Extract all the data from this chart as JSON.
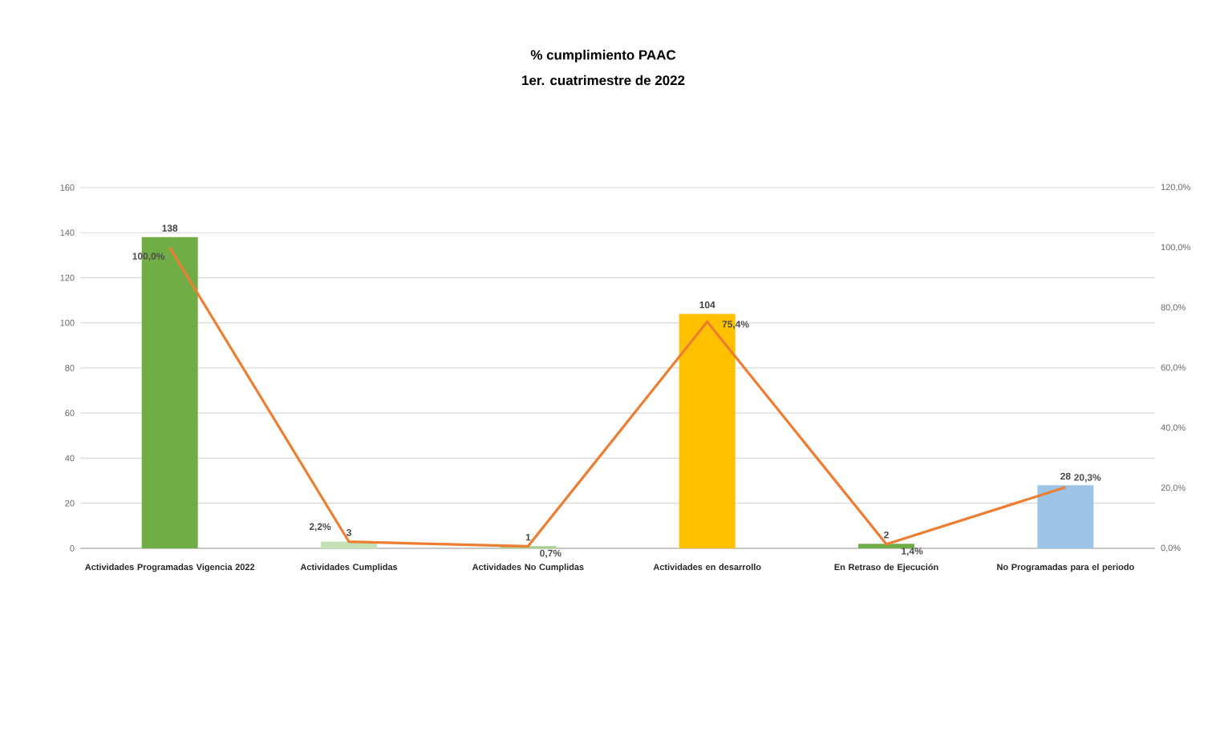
{
  "chart_data": {
    "type": "bar",
    "title": "% cumplimiento PAAC",
    "subtitle": "1er. cuatrimestre de 2022",
    "categories": [
      "Actividades Programadas Vigencia 2022",
      "Actividades Cumplidas",
      "Actividades No Cumplidas",
      "Actividades en desarrollo",
      "En Retraso de Ejecución",
      "No Programadas para el periodo"
    ],
    "series": [
      {
        "type": "bar",
        "colors": [
          "#70ad47",
          "#c5e0b4",
          "#a9d18e",
          "#ffc000",
          "#70ad47",
          "#9dc3e6"
        ],
        "values": [
          138,
          3,
          1,
          104,
          2,
          28
        ],
        "value_labels": [
          "138",
          "3",
          "1",
          "104",
          "2",
          "28"
        ]
      },
      {
        "type": "line",
        "axis": "y2",
        "color": "#ed7d31",
        "values": [
          100,
          2.2,
          0.7,
          75.4,
          1.4,
          20.3
        ],
        "value_labels": [
          "100,0%",
          "2,2%",
          "0,7%",
          "75,4%",
          "1,4%",
          "20,3%"
        ]
      }
    ],
    "ylim": [
      0,
      160
    ],
    "yticks": [
      0,
      20,
      40,
      60,
      80,
      100,
      120,
      140,
      160
    ],
    "y2lim": [
      0,
      120
    ],
    "y2ticks": [
      {
        "value": 0,
        "label": "0,0%"
      },
      {
        "value": 20,
        "label": "20,0%"
      },
      {
        "value": 40,
        "label": "40,0%"
      },
      {
        "value": 60,
        "label": "60,0%"
      },
      {
        "value": 80,
        "label": "80,0%"
      },
      {
        "value": 100,
        "label": "100,0%"
      },
      {
        "value": 120,
        "label": "120,0%"
      }
    ],
    "grid": "y"
  }
}
